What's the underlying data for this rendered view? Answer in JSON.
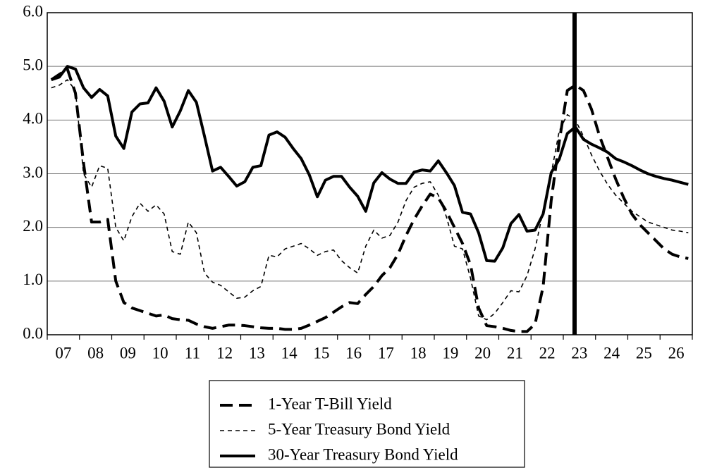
{
  "chart_data": {
    "type": "line",
    "categories": [
      null,
      "07",
      null,
      null,
      null,
      "08",
      null,
      null,
      null,
      "09",
      null,
      null,
      null,
      "10",
      null,
      null,
      null,
      "11",
      null,
      null,
      null,
      "12",
      null,
      null,
      null,
      "13",
      null,
      null,
      null,
      "14",
      null,
      null,
      null,
      "15",
      null,
      null,
      null,
      "16",
      null,
      null,
      null,
      "17",
      null,
      null,
      null,
      "18",
      null,
      null,
      null,
      "19",
      null,
      null,
      null,
      "20",
      null,
      null,
      null,
      "21",
      null,
      null,
      null,
      "22",
      null,
      null,
      null,
      "23",
      null,
      null,
      null,
      "24",
      null,
      null,
      null,
      "25",
      null,
      null,
      null,
      "26",
      null,
      null
    ],
    "series": [
      {
        "name": "1-Year T-Bill Yield",
        "color": "#000000",
        "line_style": "long-dash",
        "values": [
          4.75,
          4.85,
          4.95,
          4.5,
          3.2,
          2.1,
          2.1,
          2.15,
          1.0,
          0.6,
          0.5,
          0.45,
          0.4,
          0.35,
          0.37,
          0.3,
          0.28,
          0.27,
          0.2,
          0.15,
          0.12,
          0.15,
          0.18,
          0.18,
          0.17,
          0.15,
          0.13,
          0.12,
          0.12,
          0.1,
          0.1,
          0.12,
          0.18,
          0.25,
          0.32,
          0.42,
          0.52,
          0.6,
          0.58,
          0.75,
          0.9,
          1.1,
          1.25,
          1.5,
          1.85,
          2.15,
          2.4,
          2.62,
          2.55,
          2.3,
          2.0,
          1.7,
          1.3,
          0.5,
          0.17,
          0.15,
          0.12,
          0.08,
          0.06,
          0.06,
          0.2,
          0.9,
          2.5,
          3.6,
          4.55,
          4.65,
          4.55,
          4.2,
          3.7,
          3.3,
          2.9,
          2.55,
          2.25,
          2.05,
          1.9,
          1.75,
          1.6,
          1.5,
          1.45,
          1.42
        ]
      },
      {
        "name": "5-Year Treasury Bond Yield",
        "color": "#000000",
        "line_style": "short-dash",
        "values": [
          4.6,
          4.65,
          4.75,
          4.55,
          3.0,
          2.75,
          3.15,
          3.1,
          2.0,
          1.75,
          2.2,
          2.45,
          2.3,
          2.42,
          2.25,
          1.55,
          1.5,
          2.1,
          1.9,
          1.15,
          0.98,
          0.92,
          0.8,
          0.68,
          0.7,
          0.82,
          0.9,
          1.48,
          1.45,
          1.6,
          1.65,
          1.7,
          1.6,
          1.48,
          1.55,
          1.58,
          1.38,
          1.25,
          1.15,
          1.65,
          1.95,
          1.8,
          1.85,
          2.1,
          2.5,
          2.75,
          2.82,
          2.85,
          2.6,
          2.2,
          1.65,
          1.6,
          1.05,
          0.35,
          0.28,
          0.4,
          0.6,
          0.82,
          0.8,
          1.1,
          1.6,
          2.3,
          3.0,
          3.8,
          4.1,
          4.0,
          3.7,
          3.35,
          3.05,
          2.8,
          2.6,
          2.45,
          2.3,
          2.2,
          2.1,
          2.05,
          2.0,
          1.95,
          1.93,
          1.9
        ]
      },
      {
        "name": "30-Year Treasury Bond Yield",
        "color": "#000000",
        "line_style": "solid",
        "values": [
          4.75,
          4.8,
          5.0,
          4.95,
          4.6,
          4.42,
          4.57,
          4.45,
          3.7,
          3.47,
          4.15,
          4.3,
          4.32,
          4.6,
          4.35,
          3.87,
          4.17,
          4.55,
          4.33,
          3.7,
          3.05,
          3.12,
          2.95,
          2.77,
          2.85,
          3.12,
          3.15,
          3.72,
          3.78,
          3.68,
          3.47,
          3.28,
          2.98,
          2.57,
          2.88,
          2.95,
          2.95,
          2.75,
          2.58,
          2.3,
          2.83,
          3.02,
          2.9,
          2.82,
          2.82,
          3.03,
          3.07,
          3.05,
          3.24,
          3.02,
          2.78,
          2.28,
          2.25,
          1.9,
          1.38,
          1.37,
          1.62,
          2.07,
          2.24,
          1.93,
          1.95,
          2.25,
          3.02,
          3.27,
          3.75,
          3.87,
          3.64,
          3.55,
          3.48,
          3.4,
          3.28,
          3.22,
          3.15,
          3.07,
          3.0,
          2.95,
          2.91,
          2.88,
          2.84,
          2.8
        ]
      }
    ],
    "ylim": [
      0,
      6
    ],
    "yticks": [
      {
        "value": 0,
        "label": "0.0"
      },
      {
        "value": 1,
        "label": "1.0"
      },
      {
        "value": 2,
        "label": "2.0"
      },
      {
        "value": 3,
        "label": "3.0"
      },
      {
        "value": 4,
        "label": "4.0"
      },
      {
        "value": 5,
        "label": "5.0"
      },
      {
        "value": 6,
        "label": "6.0"
      }
    ],
    "grid": true,
    "legend": "bottom"
  }
}
